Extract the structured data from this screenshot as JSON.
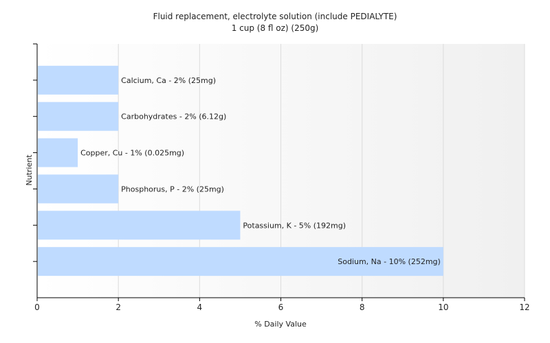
{
  "chart_data": {
    "type": "bar",
    "orientation": "horizontal",
    "title": "Fluid replacement, electrolyte solution (include PEDIALYTE)",
    "subtitle": "1 cup (8 fl oz) (250g)",
    "xlabel": "% Daily Value",
    "ylabel": "Nutrient",
    "xlim": [
      0,
      12
    ],
    "xticks": [
      0,
      2,
      4,
      6,
      8,
      10,
      12
    ],
    "grid": true,
    "bar_color": "#bfdbff",
    "categories": [
      "Calcium, Ca",
      "Carbohydrates",
      "Copper, Cu",
      "Phosphorus, P",
      "Potassium, K",
      "Sodium, Na"
    ],
    "values": [
      2,
      2,
      1,
      2,
      5,
      10
    ],
    "labels": [
      "Calcium, Ca - 2% (25mg)",
      "Carbohydrates - 2% (6.12g)",
      "Copper, Cu - 1% (0.025mg)",
      "Phosphorus, P - 2% (25mg)",
      "Potassium, K - 5% (192mg)",
      "Sodium, Na - 10% (252mg)"
    ]
  }
}
